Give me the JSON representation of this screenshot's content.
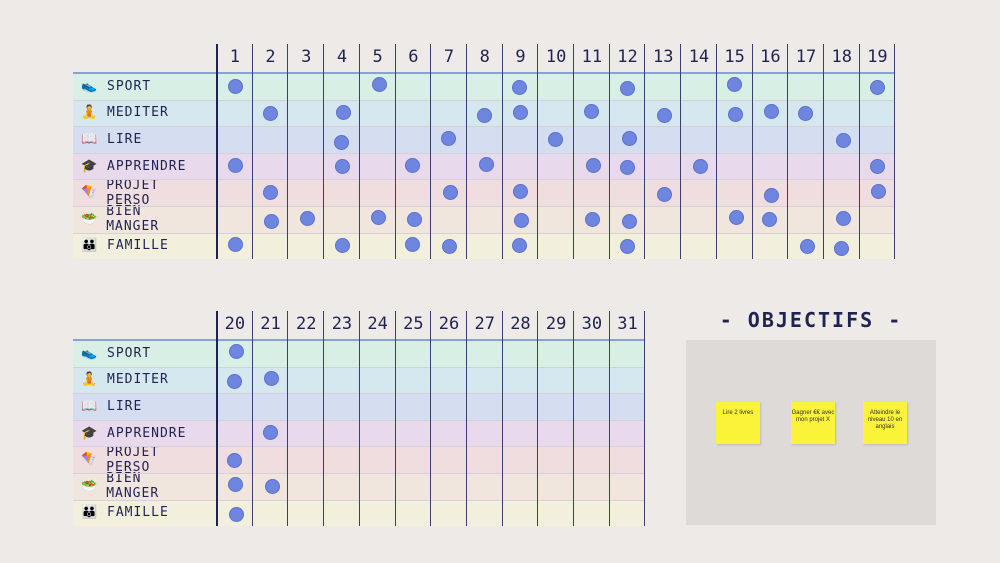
{
  "habits": [
    {
      "label": "SPORT",
      "icon": "👟",
      "icon_name": "running-shoe-icon",
      "color": "#d8efe6"
    },
    {
      "label": "MEDITER",
      "icon": "🧘",
      "icon_name": "meditation-icon",
      "color": "#d5e8ef"
    },
    {
      "label": "LIRE",
      "icon": "📖",
      "icon_name": "book-icon",
      "color": "#d5ddf0"
    },
    {
      "label": "APPRENDRE",
      "icon": "🎓",
      "icon_name": "graduation-cap-icon",
      "color": "#e8d9ec"
    },
    {
      "label": "PROJET PERSO",
      "icon": "🪁",
      "icon_name": "kite-icon",
      "color": "#f0dde0"
    },
    {
      "label": "BIEN MANGER",
      "icon": "🥗",
      "icon_name": "salad-icon",
      "color": "#f1e6dd"
    },
    {
      "label": "FAMILLE",
      "icon": "👪",
      "icon_name": "family-icon",
      "color": "#f2efdd"
    }
  ],
  "table1": {
    "days": [
      "1",
      "2",
      "3",
      "4",
      "5",
      "6",
      "7",
      "8",
      "9",
      "10",
      "11",
      "12",
      "13",
      "14",
      "15",
      "16",
      "17",
      "18",
      "19"
    ],
    "checks": [
      [
        1,
        5,
        9,
        12,
        15,
        19
      ],
      [
        2,
        4,
        8,
        9,
        11,
        13,
        15,
        16,
        17
      ],
      [
        4,
        7,
        10,
        12,
        18
      ],
      [
        1,
        4,
        6,
        8,
        11,
        12,
        14,
        19
      ],
      [
        2,
        7,
        9,
        13,
        16,
        19
      ],
      [
        2,
        3,
        5,
        6,
        9,
        11,
        12,
        15,
        16,
        18
      ],
      [
        1,
        4,
        6,
        7,
        9,
        12,
        17,
        18
      ]
    ]
  },
  "table2": {
    "days": [
      "20",
      "21",
      "22",
      "23",
      "24",
      "25",
      "26",
      "27",
      "28",
      "29",
      "30",
      "31"
    ],
    "checks": [
      [
        20
      ],
      [
        20,
        21
      ],
      [],
      [
        21
      ],
      [
        20
      ],
      [
        20,
        21
      ],
      [
        20
      ]
    ]
  },
  "objectives": {
    "title": "- OBJECTIFS -",
    "notes": [
      "Lire 2 livres",
      "Gagner €€ avec mon projet X",
      "Atteindre le niveau 10 en anglais"
    ]
  },
  "colors": {
    "dot": "#6f86e0",
    "sticky": "#fbf23a"
  }
}
